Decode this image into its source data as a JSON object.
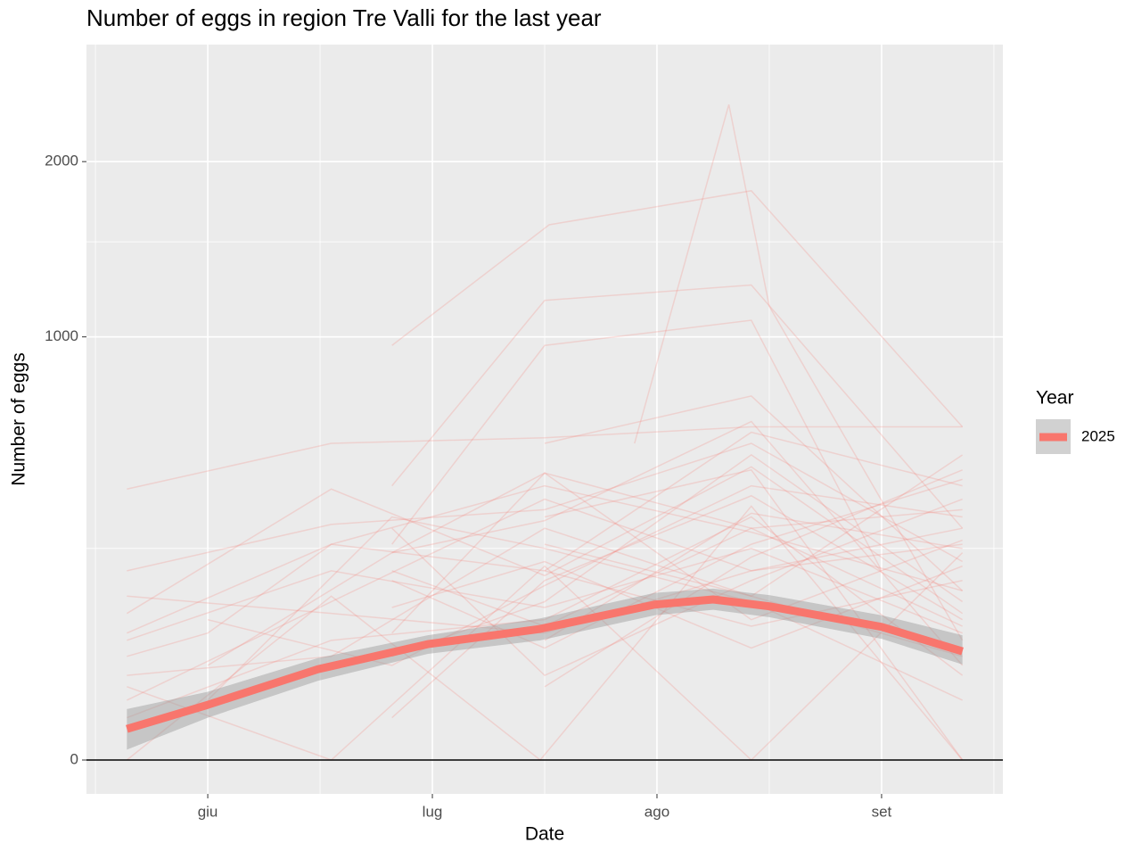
{
  "chart_data": {
    "type": "line",
    "title": "Number of eggs in region Tre Valli for the last year",
    "x_label": "Date",
    "y_label": "Number of eggs",
    "legend_title": "Year",
    "legend_position": "right",
    "y_scale": "sqrt",
    "grid": true,
    "hline": 0,
    "xlim": [
      5.46,
      9.54
    ],
    "xticks": [
      {
        "value": 6,
        "label": "giu"
      },
      {
        "value": 7,
        "label": "lug"
      },
      {
        "value": 8,
        "label": "ago"
      },
      {
        "value": 9,
        "label": "set"
      }
    ],
    "xminor": [
      5.5,
      6.5,
      7.5,
      8.5,
      9.5
    ],
    "ylim": [
      0,
      2480
    ],
    "yticks": [
      0,
      1000,
      2000
    ],
    "yminor": [
      250,
      1500
    ],
    "band_color": "#999999",
    "trace_color": "#f8766d",
    "series": [
      {
        "name": "2025",
        "color": "#f8766d",
        "x": [
          5.64,
          6.0,
          6.49,
          6.98,
          7.48,
          7.99,
          8.25,
          8.5,
          9.0,
          9.36
        ],
        "values": [
          5.4,
          17,
          46,
          75,
          96,
          135,
          144,
          132,
          99,
          66
        ],
        "lower": [
          0.6,
          10,
          35,
          63,
          80,
          117,
          126,
          114,
          82,
          51
        ],
        "upper": [
          14.5,
          26,
          58,
          87,
          112,
          156,
          164,
          152,
          117,
          87
        ]
      }
    ],
    "traces": [
      {
        "x": [
          5.64,
          6.55,
          7.5,
          8.42,
          9.36
        ],
        "values": [
          410,
          560,
          580,
          620,
          620
        ]
      },
      {
        "x": [
          6.82,
          7.52,
          8.42,
          9.36
        ],
        "values": [
          960,
          1600,
          1810,
          620
        ]
      },
      {
        "x": [
          7.9,
          8.32,
          8.5,
          9.36
        ],
        "values": [
          560,
          2400,
          1150,
          80
        ]
      },
      {
        "x": [
          6.82,
          7.5,
          8.42,
          9.36
        ],
        "values": [
          420,
          1180,
          1260,
          300
        ]
      },
      {
        "x": [
          6.82,
          7.5,
          8.42,
          9.0
        ],
        "values": [
          260,
          960,
          1080,
          200
        ]
      },
      {
        "x": [
          5.64,
          6.55,
          7.5,
          8.42,
          9.36
        ],
        "values": [
          200,
          310,
          350,
          560,
          220
        ]
      },
      {
        "x": [
          5.64,
          6.55,
          7.5,
          8.42,
          9.36
        ],
        "values": [
          120,
          410,
          190,
          480,
          120
        ]
      },
      {
        "x": [
          5.64,
          6.0,
          6.55,
          7.5,
          8.42,
          9.36
        ],
        "values": [
          60,
          90,
          260,
          420,
          290,
          160
        ]
      },
      {
        "x": [
          5.64,
          6.55,
          7.48,
          8.42,
          9.36
        ],
        "values": [
          0,
          150,
          0,
          360,
          0
        ]
      },
      {
        "x": [
          5.64,
          6.55,
          7.5,
          8.42,
          9.36
        ],
        "values": [
          30,
          0,
          210,
          0,
          240
        ]
      },
      {
        "x": [
          5.64,
          6.55,
          7.5,
          8.42,
          9.36
        ],
        "values": [
          80,
          200,
          130,
          250,
          90
        ]
      },
      {
        "x": [
          5.64,
          6.55,
          7.5,
          8.42,
          9.36
        ],
        "values": [
          40,
          60,
          300,
          150,
          60
        ]
      },
      {
        "x": [
          5.64,
          6.55,
          7.5,
          8.42,
          9.36
        ],
        "values": [
          150,
          120,
          90,
          200,
          300
        ]
      },
      {
        "x": [
          5.64,
          6.55,
          7.5,
          8.42,
          9.36
        ],
        "values": [
          10,
          80,
          110,
          330,
          40
        ]
      },
      {
        "x": [
          5.64,
          6.55,
          7.5,
          8.42,
          9.36
        ],
        "values": [
          90,
          260,
          200,
          100,
          180
        ]
      },
      {
        "x": [
          5.64,
          6.55,
          7.5,
          8.42,
          9.36
        ],
        "values": [
          20,
          140,
          380,
          200,
          260
        ]
      },
      {
        "x": [
          6.0,
          6.82,
          7.5,
          8.42,
          9.36
        ],
        "values": [
          50,
          240,
          460,
          300,
          100
        ]
      },
      {
        "x": [
          6.0,
          6.82,
          7.5,
          8.42,
          9.36
        ],
        "values": [
          110,
          50,
          170,
          420,
          330
        ]
      },
      {
        "x": [
          6.0,
          6.82,
          7.5,
          8.42,
          9.36
        ],
        "values": [
          20,
          330,
          250,
          140,
          20
        ]
      },
      {
        "x": [
          6.82,
          7.5,
          8.42,
          9.36
        ],
        "values": [
          180,
          70,
          260,
          440
        ]
      },
      {
        "x": [
          6.82,
          7.5,
          8.42,
          9.36
        ],
        "values": [
          60,
          140,
          520,
          140
        ]
      },
      {
        "x": [
          6.82,
          7.5,
          8.42,
          9.36
        ],
        "values": [
          300,
          40,
          180,
          380
        ]
      },
      {
        "x": [
          6.82,
          7.5,
          8.42,
          9.36
        ],
        "values": [
          130,
          220,
          70,
          210
        ]
      },
      {
        "x": [
          6.82,
          7.5,
          8.42,
          9.36
        ],
        "values": [
          240,
          320,
          640,
          50
        ]
      },
      {
        "x": [
          6.82,
          7.5,
          8.42,
          9.36
        ],
        "values": [
          10,
          180,
          390,
          110
        ]
      },
      {
        "x": [
          6.82,
          7.5,
          8.42,
          9.36
        ],
        "values": [
          90,
          460,
          110,
          270
        ]
      },
      {
        "x": [
          6.82,
          7.5,
          8.42,
          9.36
        ],
        "values": [
          200,
          100,
          300,
          350
        ]
      },
      {
        "x": [
          7.5,
          8.42,
          9.36
        ],
        "values": [
          560,
          740,
          160
        ]
      },
      {
        "x": [
          7.5,
          8.42,
          9.36
        ],
        "values": [
          30,
          230,
          470
        ]
      },
      {
        "x": [
          7.5,
          8.42,
          9.36
        ],
        "values": [
          330,
          470,
          0
        ]
      },
      {
        "x": [
          7.5,
          8.42,
          9.36
        ],
        "values": [
          200,
          600,
          420
        ]
      },
      {
        "x": [
          7.5,
          8.42,
          9.36
        ],
        "values": [
          80,
          340,
          250
        ]
      },
      {
        "x": [
          7.5,
          8.42,
          9.36
        ],
        "values": [
          260,
          150,
          520
        ]
      }
    ]
  }
}
